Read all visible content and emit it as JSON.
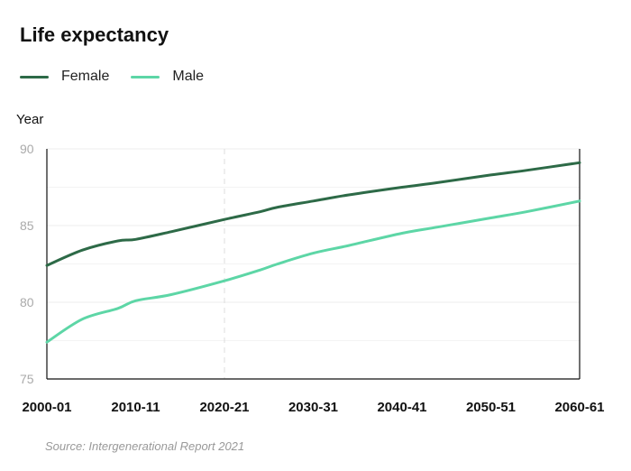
{
  "title": "Life expectancy",
  "source": "Source: Intergenerational Report 2021",
  "chart_data": {
    "type": "line",
    "ylabel": "Year",
    "xlabel": "",
    "x_ticks": [
      "2000-01",
      "2010-11",
      "2020-21",
      "2030-31",
      "2040-41",
      "2050-51",
      "2060-61"
    ],
    "ylim": [
      75,
      90
    ],
    "y_ticks": [
      75,
      80,
      85,
      90
    ],
    "legend_position": "top-left",
    "x_years": [
      2000,
      2004,
      2008,
      2010,
      2014,
      2020,
      2024,
      2026,
      2030,
      2034,
      2040,
      2044,
      2050,
      2054,
      2060
    ],
    "series": [
      {
        "name": "Female",
        "color": "#2d6a47",
        "values": [
          82.4,
          83.4,
          84.0,
          84.1,
          84.6,
          85.4,
          85.9,
          86.2,
          86.6,
          87.0,
          87.5,
          87.8,
          88.3,
          88.6,
          89.1
        ]
      },
      {
        "name": "Male",
        "color": "#5dd6a6",
        "values": [
          77.4,
          78.9,
          79.6,
          80.1,
          80.5,
          81.4,
          82.1,
          82.5,
          83.2,
          83.7,
          84.5,
          84.9,
          85.5,
          85.9,
          86.6
        ]
      }
    ]
  }
}
